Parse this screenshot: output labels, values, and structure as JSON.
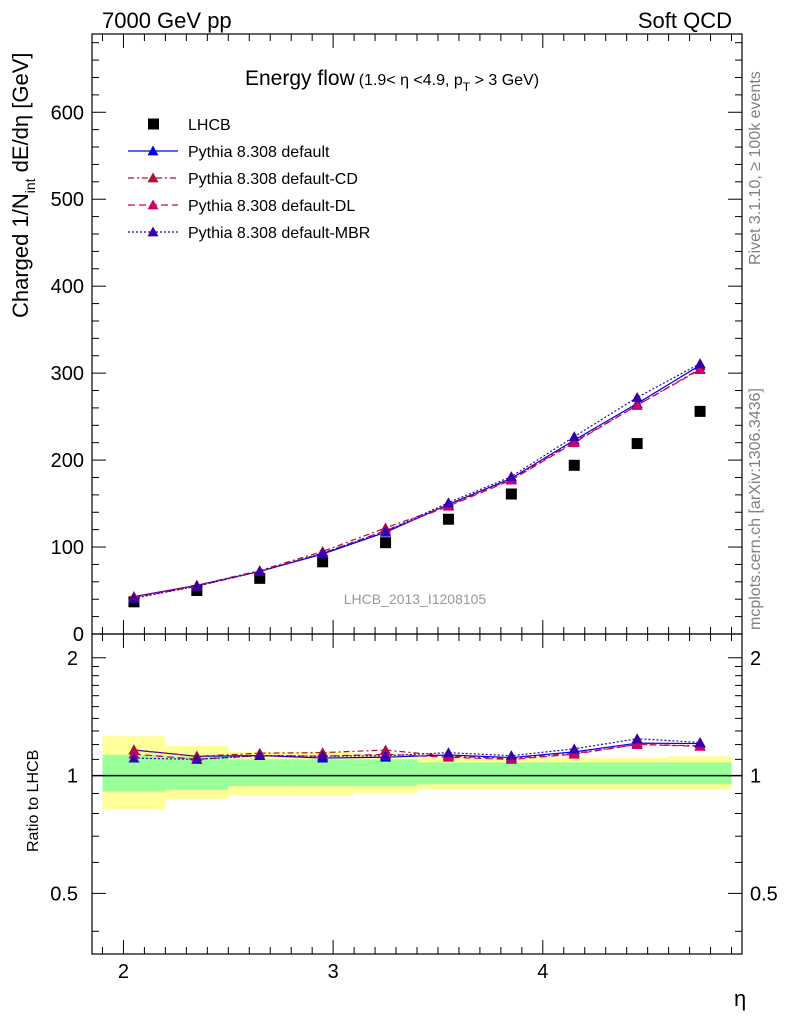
{
  "header": {
    "left": "7000 GeV pp",
    "right": "Soft QCD"
  },
  "side_labels": {
    "rivet": "Rivet 3.1.10, ≥ 100k events",
    "mcplots": "mcplots.cern.ch [arXiv:1306.3436]"
  },
  "watermark": "LHCB_2013_I1208105",
  "chart_data": {
    "type": "scatter",
    "title": "Energy flow",
    "title_sub": "(1.9< η <4.9, p",
    "title_sub_sub": "T",
    "title_sub_end": " > 3 GeV)",
    "ylabel": "Charged 1/N",
    "ylabel_sub": "int",
    "ylabel_end": " dE/dη [GeV]",
    "ratio_ylabel": "Ratio to LHCB",
    "xlabel": "η",
    "xlim": [
      1.85,
      4.95
    ],
    "ylim": [
      0,
      690
    ],
    "ratio_ylim": [
      0.35,
      2.3
    ],
    "x_ticks": [
      "2",
      "3",
      "4"
    ],
    "y_ticks": [
      "0",
      "100",
      "200",
      "300",
      "400",
      "500",
      "600"
    ],
    "ratio_ticks": [
      "0.5",
      "1",
      "2"
    ],
    "x": [
      2.05,
      2.35,
      2.65,
      2.95,
      3.25,
      3.55,
      3.85,
      4.15,
      4.45,
      4.75
    ],
    "bin_edges": [
      1.9,
      2.2,
      2.5,
      2.8,
      3.1,
      3.4,
      3.7,
      4.0,
      4.3,
      4.6,
      4.9
    ],
    "data": {
      "name": "LHCB",
      "values": [
        37,
        50,
        64,
        83,
        105,
        132,
        161,
        194,
        219,
        256
      ],
      "band_inner": [
        [
          0.91,
          1.13
        ],
        [
          0.92,
          1.12
        ],
        [
          0.94,
          1.1
        ],
        [
          0.94,
          1.1
        ],
        [
          0.94,
          1.1
        ],
        [
          0.95,
          1.08
        ],
        [
          0.95,
          1.08
        ],
        [
          0.95,
          1.08
        ],
        [
          0.95,
          1.08
        ],
        [
          0.95,
          1.08
        ]
      ],
      "band_outer": [
        [
          0.82,
          1.26
        ],
        [
          0.87,
          1.19
        ],
        [
          0.89,
          1.15
        ],
        [
          0.89,
          1.15
        ],
        [
          0.9,
          1.14
        ],
        [
          0.92,
          1.11
        ],
        [
          0.92,
          1.11
        ],
        [
          0.92,
          1.11
        ],
        [
          0.92,
          1.11
        ],
        [
          0.92,
          1.12
        ]
      ]
    },
    "series": [
      {
        "name": "Pythia 8.308 default",
        "color": "#0000ee",
        "dash": "solid",
        "values": [
          43,
          56,
          72,
          92,
          117,
          149,
          179,
          223,
          265,
          309
        ]
      },
      {
        "name": "Pythia 8.308 default-CD",
        "color": "#aa1133",
        "dash": "dash",
        "values": [
          43,
          56,
          73,
          95,
          122,
          148,
          178,
          221,
          263,
          305
        ]
      },
      {
        "name": "Pythia 8.308 default-DL",
        "color": "#cc0066",
        "dash": "dashlong",
        "values": [
          42,
          55,
          72,
          93,
          119,
          147,
          177,
          220,
          263,
          304
        ]
      },
      {
        "name": "Pythia 8.308 default-MBR",
        "color": "#3300aa",
        "dash": "dot",
        "values": [
          41,
          55,
          72,
          93,
          118,
          151,
          181,
          227,
          272,
          311
        ]
      }
    ]
  }
}
